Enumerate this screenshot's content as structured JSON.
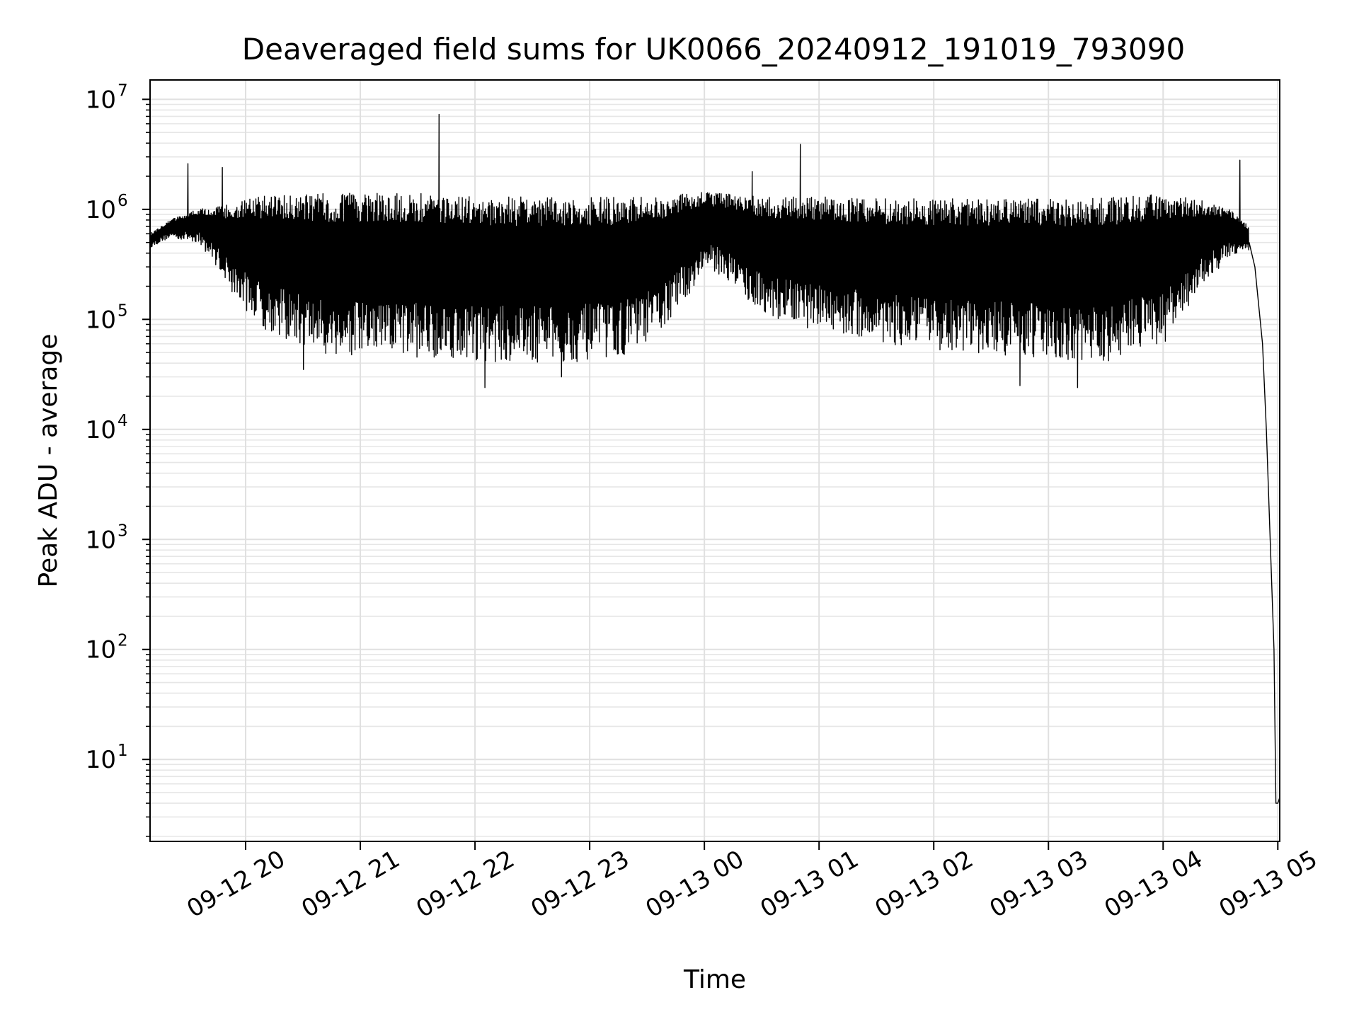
{
  "chart_data": {
    "type": "line",
    "title": "Deaveraged field sums for UK0066_20240912_191019_793090",
    "xlabel": "Time",
    "ylabel": "Peak ADU - average",
    "y_scale": "log",
    "ylim": [
      1.8,
      15000000
    ],
    "xlim": [
      "09-12 19:10",
      "09-13 05:01"
    ],
    "grid": true,
    "x_ticks": [
      {
        "label": "09-12 20",
        "time": "09-12 20:00"
      },
      {
        "label": "09-12 21",
        "time": "09-12 21:00"
      },
      {
        "label": "09-12 22",
        "time": "09-12 22:00"
      },
      {
        "label": "09-12 23",
        "time": "09-12 23:00"
      },
      {
        "label": "09-13 00",
        "time": "09-13 00:00"
      },
      {
        "label": "09-13 01",
        "time": "09-13 01:00"
      },
      {
        "label": "09-13 02",
        "time": "09-13 02:00"
      },
      {
        "label": "09-13 03",
        "time": "09-13 03:00"
      },
      {
        "label": "09-13 04",
        "time": "09-13 04:00"
      },
      {
        "label": "09-13 05",
        "time": "09-13 05:00"
      }
    ],
    "y_ticks": [
      {
        "base": "10",
        "exp": "1",
        "value": 10
      },
      {
        "base": "10",
        "exp": "2",
        "value": 100
      },
      {
        "base": "10",
        "exp": "3",
        "value": 1000
      },
      {
        "base": "10",
        "exp": "4",
        "value": 10000
      },
      {
        "base": "10",
        "exp": "5",
        "value": 100000
      },
      {
        "base": "10",
        "exp": "6",
        "value": 1000000
      },
      {
        "base": "10",
        "exp": "7",
        "value": 10000000
      }
    ],
    "series": [
      {
        "color": "#000000",
        "upper_envelope": {
          "x": [
            "09-12 19:10",
            "09-12 19:20",
            "09-12 19:35",
            "09-12 19:50",
            "09-12 20:05",
            "09-12 20:30",
            "09-12 21:00",
            "09-12 21:30",
            "09-12 22:00",
            "09-12 22:30",
            "09-12 23:00",
            "09-12 23:30",
            "09-13 00:00",
            "09-13 00:30",
            "09-13 01:00",
            "09-13 01:30",
            "09-13 02:00",
            "09-13 02:30",
            "09-13 03:00",
            "09-13 03:30",
            "09-13 04:00",
            "09-13 04:20",
            "09-13 04:35",
            "09-13 04:45"
          ],
          "y": [
            600000,
            800000,
            1000000,
            1100000,
            1300000,
            1400000,
            1400000,
            1400000,
            1300000,
            1300000,
            1300000,
            1300000,
            1450000,
            1300000,
            1300000,
            1250000,
            1250000,
            1250000,
            1250000,
            1300000,
            1400000,
            1200000,
            1000000,
            700000
          ]
        },
        "lower_envelope": {
          "x": [
            "09-12 19:10",
            "09-12 19:20",
            "09-12 19:35",
            "09-12 19:45",
            "09-12 19:55",
            "09-12 20:10",
            "09-12 20:25",
            "09-12 20:45",
            "09-12 21:15",
            "09-12 21:45",
            "09-12 22:15",
            "09-12 22:45",
            "09-12 23:15",
            "09-12 23:35",
            "09-12 23:50",
            "09-13 00:00",
            "09-13 00:10",
            "09-13 00:25",
            "09-13 00:45",
            "09-13 01:15",
            "09-13 01:45",
            "09-13 02:15",
            "09-13 02:45",
            "09-13 03:15",
            "09-13 03:30",
            "09-13 03:45",
            "09-13 04:00",
            "09-13 04:10",
            "09-13 04:20",
            "09-13 04:30",
            "09-13 04:40"
          ],
          "y": [
            450000,
            550000,
            500000,
            300000,
            150000,
            80000,
            60000,
            45000,
            45000,
            45000,
            40000,
            40000,
            45000,
            70000,
            150000,
            280000,
            250000,
            130000,
            90000,
            70000,
            55000,
            50000,
            45000,
            40000,
            40000,
            55000,
            60000,
            100000,
            200000,
            300000,
            420000
          ]
        },
        "spikes": [
          {
            "x": "09-12 19:30",
            "y": 2600000
          },
          {
            "x": "09-12 19:48",
            "y": 2400000
          },
          {
            "x": "09-12 21:41",
            "y": 7300000
          },
          {
            "x": "09-13 00:25",
            "y": 2200000
          },
          {
            "x": "09-13 00:50",
            "y": 3900000
          },
          {
            "x": "09-13 04:40",
            "y": 2800000
          }
        ],
        "dips": [
          {
            "x": "09-12 20:30",
            "y": 35000
          },
          {
            "x": "09-12 22:05",
            "y": 24000
          },
          {
            "x": "09-12 22:45",
            "y": 30000
          },
          {
            "x": "09-13 02:45",
            "y": 25000
          },
          {
            "x": "09-13 03:15",
            "y": 24000
          }
        ],
        "tail": {
          "x": [
            "09-13 04:45",
            "09-13 04:48",
            "09-13 04:52",
            "09-13 04:54",
            "09-13 04:56",
            "09-13 04:58",
            "09-13 04:59",
            "09-13 05:00",
            "09-13 05:01"
          ],
          "y": [
            500000,
            300000,
            60000,
            10000,
            1000,
            100,
            4,
            4,
            4.5
          ]
        }
      }
    ]
  }
}
